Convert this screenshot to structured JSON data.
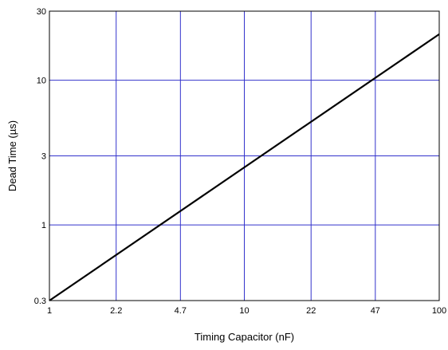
{
  "chart_data": {
    "type": "line",
    "title": "",
    "xlabel": "Timing Capacitor (nF)",
    "ylabel": "Dead Time (µs)",
    "xscale": "log",
    "yscale": "log",
    "xlim": [
      1,
      100
    ],
    "ylim": [
      0.3,
      30
    ],
    "xticks": [
      1,
      2.2,
      4.7,
      10,
      22,
      47,
      100
    ],
    "xtick_labels": [
      "1",
      "2.2",
      "4.7",
      "10",
      "22",
      "47",
      "100"
    ],
    "yticks": [
      0.3,
      1,
      3,
      10,
      30
    ],
    "ytick_labels": [
      "0.3",
      "1",
      "3",
      "10",
      "30"
    ],
    "grid": true,
    "series": [
      {
        "x": [
          1,
          100
        ],
        "y": [
          0.3,
          20.8
        ]
      }
    ],
    "colors": {
      "grid": "#3333cc",
      "line": "#000000",
      "frame": "#000000"
    }
  }
}
